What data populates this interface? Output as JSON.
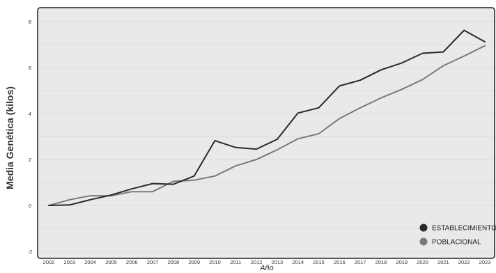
{
  "chart_data": {
    "type": "line",
    "xlabel": "Año",
    "ylabel": "Media Genética (kilos)",
    "ylim": [
      -2,
      8.5
    ],
    "yticks": [
      -2,
      0,
      2,
      4,
      6,
      8
    ],
    "grid": true,
    "legend_position": "bottom-right",
    "x": [
      "2002",
      "2003",
      "2004",
      "2005",
      "2006",
      "2007",
      "2008",
      "2009",
      "2010",
      "2011",
      "2012",
      "2013",
      "2014",
      "2015",
      "2016",
      "2017",
      "2018",
      "2019",
      "2020",
      "2021",
      "2022",
      "2023"
    ],
    "series": [
      {
        "name": "ESTABLECIMIENTO",
        "color": "#2a2a2a",
        "values": [
          0.0,
          0.02,
          0.25,
          0.45,
          0.72,
          0.95,
          0.92,
          1.28,
          2.82,
          2.52,
          2.45,
          2.88,
          4.02,
          4.25,
          5.2,
          5.45,
          5.9,
          6.2,
          6.62,
          6.68,
          7.62,
          7.12
        ]
      },
      {
        "name": "POBLACIONAL",
        "color": "#7a7a7a",
        "values": [
          0.0,
          0.25,
          0.42,
          0.42,
          0.6,
          0.6,
          1.05,
          1.1,
          1.28,
          1.72,
          2.0,
          2.42,
          2.9,
          3.12,
          3.78,
          4.25,
          4.68,
          5.05,
          5.48,
          6.08,
          6.5,
          6.95
        ]
      }
    ]
  }
}
